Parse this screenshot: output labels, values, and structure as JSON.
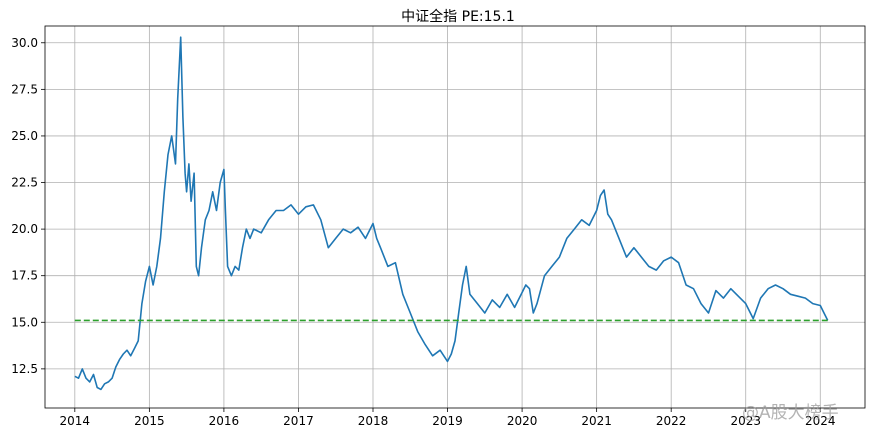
{
  "chart_data": {
    "type": "line",
    "title": "中证全指  PE:15.1",
    "xlabel": "",
    "ylabel": "",
    "xlim": [
      2013.6,
      2024.6
    ],
    "ylim": [
      10.4,
      30.9
    ],
    "grid": true,
    "x_ticks": [
      2014,
      2015,
      2016,
      2017,
      2018,
      2019,
      2020,
      2021,
      2022,
      2023,
      2024
    ],
    "x_tick_labels": [
      "2014",
      "2015",
      "2016",
      "2017",
      "2018",
      "2019",
      "2020",
      "2021",
      "2022",
      "2023",
      "2024"
    ],
    "y_ticks": [
      12.5,
      15.0,
      17.5,
      20.0,
      22.5,
      25.0,
      27.5,
      30.0
    ],
    "y_tick_labels": [
      "12.5",
      "15.0",
      "17.5",
      "20.0",
      "22.5",
      "25.0",
      "27.5",
      "30.0"
    ],
    "series": [
      {
        "line_color": "#1f77b4",
        "x": [
          2014.0,
          2014.05,
          2014.1,
          2014.15,
          2014.2,
          2014.25,
          2014.3,
          2014.35,
          2014.4,
          2014.45,
          2014.5,
          2014.55,
          2014.6,
          2014.65,
          2014.7,
          2014.75,
          2014.8,
          2014.85,
          2014.9,
          2014.95,
          2015.0,
          2015.05,
          2015.1,
          2015.15,
          2015.2,
          2015.25,
          2015.3,
          2015.35,
          2015.38,
          2015.42,
          2015.45,
          2015.48,
          2015.5,
          2015.53,
          2015.56,
          2015.6,
          2015.63,
          2015.66,
          2015.7,
          2015.75,
          2015.8,
          2015.85,
          2015.9,
          2015.95,
          2016.0,
          2016.02,
          2016.05,
          2016.1,
          2016.15,
          2016.2,
          2016.25,
          2016.3,
          2016.35,
          2016.4,
          2016.5,
          2016.6,
          2016.7,
          2016.8,
          2016.9,
          2017.0,
          2017.1,
          2017.2,
          2017.3,
          2017.4,
          2017.5,
          2017.6,
          2017.7,
          2017.8,
          2017.9,
          2018.0,
          2018.05,
          2018.1,
          2018.2,
          2018.3,
          2018.4,
          2018.5,
          2018.6,
          2018.7,
          2018.8,
          2018.9,
          2019.0,
          2019.05,
          2019.1,
          2019.15,
          2019.2,
          2019.25,
          2019.3,
          2019.4,
          2019.5,
          2019.6,
          2019.7,
          2019.8,
          2019.9,
          2020.0,
          2020.05,
          2020.1,
          2020.15,
          2020.2,
          2020.3,
          2020.4,
          2020.5,
          2020.6,
          2020.7,
          2020.8,
          2020.9,
          2021.0,
          2021.05,
          2021.1,
          2021.15,
          2021.2,
          2021.3,
          2021.4,
          2021.5,
          2021.6,
          2021.7,
          2021.8,
          2021.9,
          2022.0,
          2022.1,
          2022.2,
          2022.3,
          2022.4,
          2022.5,
          2022.6,
          2022.7,
          2022.8,
          2022.9,
          2023.0,
          2023.1,
          2023.2,
          2023.3,
          2023.4,
          2023.5,
          2023.6,
          2023.7,
          2023.8,
          2023.9,
          2024.0,
          2024.05,
          2024.1
        ],
        "y": [
          12.1,
          12.0,
          12.5,
          12.0,
          11.8,
          12.2,
          11.5,
          11.4,
          11.7,
          11.8,
          12.0,
          12.6,
          13.0,
          13.3,
          13.5,
          13.2,
          13.6,
          14.0,
          16.0,
          17.2,
          18.0,
          17.0,
          18.0,
          19.5,
          22.0,
          24.0,
          25.0,
          23.5,
          27.0,
          30.3,
          26.0,
          23.0,
          22.0,
          23.5,
          21.5,
          23.0,
          18.0,
          17.5,
          19.0,
          20.5,
          21.0,
          22.0,
          21.0,
          22.5,
          23.2,
          21.0,
          18.0,
          17.5,
          18.0,
          17.8,
          19.0,
          20.0,
          19.5,
          20.0,
          19.8,
          20.5,
          21.0,
          21.0,
          21.3,
          20.8,
          21.2,
          21.3,
          20.5,
          19.0,
          19.5,
          20.0,
          19.8,
          20.1,
          19.5,
          20.3,
          19.5,
          19.0,
          18.0,
          18.2,
          16.5,
          15.5,
          14.5,
          13.8,
          13.2,
          13.5,
          12.9,
          13.3,
          14.0,
          15.5,
          17.0,
          18.0,
          16.5,
          16.0,
          15.5,
          16.2,
          15.8,
          16.5,
          15.8,
          16.6,
          17.0,
          16.8,
          15.5,
          16.0,
          17.5,
          18.0,
          18.5,
          19.5,
          20.0,
          20.5,
          20.2,
          21.0,
          21.8,
          22.1,
          20.8,
          20.5,
          19.5,
          18.5,
          19.0,
          18.5,
          18.0,
          17.8,
          18.3,
          18.5,
          18.2,
          17.0,
          16.8,
          16.0,
          15.5,
          16.7,
          16.3,
          16.8,
          16.4,
          16.0,
          15.2,
          16.3,
          16.8,
          17.0,
          16.8,
          16.5,
          16.4,
          16.3,
          16.0,
          15.9,
          15.5,
          15.1
        ]
      },
      {
        "line_color": "#2ca02c",
        "line_style": "dashed",
        "x": [
          2014.0,
          2024.1
        ],
        "y": [
          15.1,
          15.1
        ]
      }
    ],
    "watermark": "@A股大榜手"
  }
}
